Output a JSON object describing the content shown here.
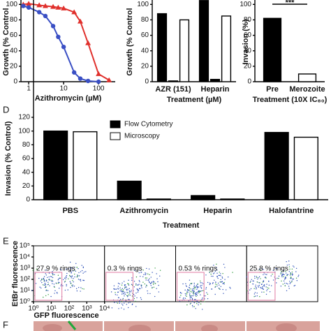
{
  "chart_data": [
    {
      "type": "line",
      "xlabel": "Azithromycin (µM)",
      "ylabel": "Growth (% Control",
      "log_x": true,
      "x": [
        0.7,
        1,
        2,
        3,
        5,
        7,
        10,
        20,
        30,
        50,
        100,
        200
      ],
      "xlim": [
        0.6,
        300
      ],
      "xticks": [
        1,
        10,
        100
      ],
      "ylim": [
        0,
        103
      ],
      "yticks": [
        0,
        20,
        40,
        60,
        80,
        100
      ],
      "series": [
        {
          "color": "#e0302c",
          "marker": "triangle",
          "values": [
            100,
            101,
            99,
            98,
            97,
            96,
            95,
            90,
            78,
            50,
            10,
            2
          ]
        },
        {
          "color": "#3a4fc4",
          "marker": "circle",
          "values": [
            98,
            96,
            90,
            85,
            72,
            58,
            45,
            12,
            4,
            1,
            0,
            null
          ]
        }
      ]
    },
    {
      "type": "bar",
      "xlabel": "Treatment (µM)",
      "ylabel": "Growth (% Control",
      "categories": [
        "AZR (151)",
        "Heparin"
      ],
      "ylim": [
        0,
        103
      ],
      "yticks": [
        0,
        20,
        40,
        60,
        80,
        100
      ],
      "series": [
        {
          "color": "#000000",
          "values": [
            88,
            105
          ]
        },
        {
          "color": "#000000",
          "values": [
            1,
            3
          ]
        },
        {
          "color": "#ffffff",
          "values": [
            80,
            85
          ]
        }
      ]
    },
    {
      "type": "bar",
      "xlabel": "Treatment (10X IC₈₀)",
      "ylabel": "Invasion (%)",
      "annotation": "***",
      "categories": [
        "Pre",
        "Merozoite"
      ],
      "ylim": [
        0,
        103
      ],
      "yticks": [
        0,
        20,
        40,
        60,
        80,
        100
      ],
      "series": [
        {
          "colors": [
            "#000000",
            "#ffffff"
          ],
          "values": [
            82,
            10
          ]
        }
      ]
    },
    {
      "type": "bar",
      "panel_label": "D",
      "xlabel": "Treatment",
      "ylabel": "Invasion (% Control)",
      "categories": [
        "PBS",
        "Azithromycin",
        "Heparin",
        "Halofantrine"
      ],
      "ylim": [
        0,
        120
      ],
      "yticks": [
        0,
        20,
        40,
        60,
        80,
        100,
        120
      ],
      "series": [
        {
          "name": "Flow Cytometry",
          "color": "#000000",
          "values": [
            100,
            27,
            6,
            98
          ]
        },
        {
          "name": "Microscopy",
          "color": "#ffffff",
          "values": [
            99,
            1,
            1,
            91
          ]
        }
      ]
    },
    {
      "type": "scatter",
      "panel_label": "E",
      "xlabel": "GFP fluorescence",
      "ylabel": "EtBr fluorescence",
      "log_x": true,
      "log_y": true,
      "xlim": [
        1,
        10000
      ],
      "ylim": [
        1,
        100000
      ],
      "xticks": [
        {
          "value": 1,
          "label": "10⁰"
        },
        {
          "value": 10,
          "label": "10¹"
        },
        {
          "value": 100,
          "label": "10²"
        },
        {
          "value": 1000,
          "label": "10³"
        },
        {
          "value": 10000,
          "label": "10⁴"
        }
      ],
      "yticks": [
        {
          "value": 1,
          "label": "10⁰"
        },
        {
          "value": 10,
          "label": "10¹"
        },
        {
          "value": 100,
          "label": "10²"
        },
        {
          "value": 1000,
          "label": "10³"
        },
        {
          "value": 10000,
          "label": "10⁴"
        },
        {
          "value": 100000,
          "label": "10⁵"
        }
      ],
      "annotations": [
        "27.9 % rings",
        "0.3 % rings",
        "0.53 % rings",
        "25.8 % rings"
      ]
    }
  ],
  "panel_f": {
    "label": "F"
  }
}
